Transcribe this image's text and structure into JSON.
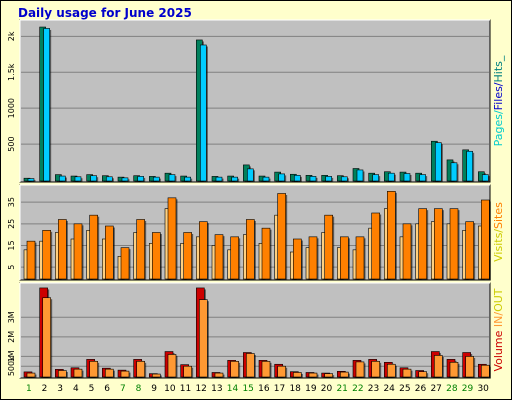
{
  "title": "Daily usage for June 2025",
  "colors": {
    "background": "#ffffcc",
    "panel": "#c0c0c0",
    "pages": "#00805c",
    "files": "#00ccff",
    "visits": "#ff8000",
    "volume_in": "#cc0000",
    "volume_out": "#ff9933",
    "label_pages": "#00cccc",
    "label_files": "#0000cc",
    "label_hits": "#008080",
    "label_visits": "#cccc00",
    "label_sites": "#ff8000",
    "label_volume": "#cc0000",
    "label_in": "#ff9933",
    "label_out": "#cccc00",
    "weekend_day": "#008000",
    "weekday_day": "#000000"
  },
  "chart_data": [
    {
      "type": "bar",
      "panel": "hits",
      "title": "Daily usage for June 2025",
      "categories": [
        "1",
        "2",
        "3",
        "4",
        "5",
        "6",
        "7",
        "8",
        "9",
        "10",
        "11",
        "12",
        "13",
        "14",
        "15",
        "16",
        "17",
        "18",
        "19",
        "20",
        "21",
        "22",
        "23",
        "24",
        "25",
        "26",
        "27",
        "28",
        "29",
        "30"
      ],
      "weekend_days": [
        "1",
        "7",
        "8",
        "14",
        "15",
        "21",
        "22",
        "28",
        "29"
      ],
      "series": [
        {
          "name": "Pages",
          "values": [
            25,
            2130,
            75,
            55,
            75,
            60,
            40,
            60,
            50,
            95,
            55,
            1950,
            50,
            55,
            210,
            55,
            110,
            80,
            65,
            65,
            60,
            160,
            95,
            115,
            110,
            95,
            540,
            280,
            420,
            115
          ]
        },
        {
          "name": "Files",
          "values": [
            20,
            2110,
            55,
            45,
            60,
            45,
            30,
            50,
            40,
            75,
            40,
            1880,
            40,
            40,
            155,
            40,
            85,
            65,
            50,
            50,
            45,
            140,
            75,
            95,
            90,
            75,
            520,
            240,
            400,
            75
          ]
        },
        {
          "name": "Hits",
          "values": [
            25,
            2130,
            75,
            55,
            75,
            60,
            40,
            60,
            50,
            95,
            55,
            1950,
            50,
            55,
            210,
            55,
            110,
            80,
            65,
            65,
            60,
            160,
            95,
            115,
            110,
            95,
            540,
            280,
            420,
            115
          ]
        }
      ],
      "y_ticks": [
        "500",
        "1000",
        "1.5k",
        "2k"
      ],
      "y_tick_values": [
        500,
        1000,
        1500,
        2000
      ],
      "ylim": [
        0,
        2200
      ],
      "legend": [
        "Pages",
        "Files",
        "Hits"
      ],
      "legend_separator": "/",
      "legend_suffix": "_"
    },
    {
      "type": "bar",
      "panel": "visits",
      "series": [
        {
          "name": "Sites",
          "values": [
            13,
            17,
            21,
            18,
            22,
            18,
            10,
            21,
            16,
            32,
            16,
            19,
            15,
            13,
            20,
            16,
            29,
            12,
            14,
            21,
            14,
            13,
            23,
            32,
            19,
            25,
            26,
            25,
            22,
            24
          ]
        },
        {
          "name": "Visits",
          "values": [
            17,
            22,
            27,
            25,
            29,
            24,
            14,
            27,
            21,
            37,
            21,
            26,
            20,
            19,
            27,
            23,
            39,
            18,
            19,
            29,
            19,
            19,
            30,
            40,
            25,
            32,
            32,
            32,
            26,
            36
          ]
        }
      ],
      "y_ticks": [
        "5",
        "15",
        "25",
        "35"
      ],
      "y_tick_values": [
        5,
        15,
        25,
        35
      ],
      "ylim": [
        0,
        42
      ],
      "legend": [
        "Visits",
        "Sites"
      ],
      "legend_separator": "/"
    },
    {
      "type": "bar",
      "panel": "volume",
      "series": [
        {
          "name": "IN",
          "values": [
            0.21,
            4.5,
            0.34,
            0.42,
            0.85,
            0.4,
            0.3,
            0.85,
            0.12,
            1.25,
            0.58,
            4.5,
            0.18,
            0.8,
            1.2,
            0.8,
            0.6,
            0.22,
            0.18,
            0.15,
            0.24,
            0.8,
            0.85,
            0.7,
            0.42,
            0.28,
            1.25,
            0.85,
            1.2,
            0.6
          ]
        },
        {
          "name": "OUT",
          "values": [
            0.15,
            4.0,
            0.28,
            0.35,
            0.75,
            0.35,
            0.25,
            0.75,
            0.1,
            1.1,
            0.5,
            3.9,
            0.15,
            0.75,
            1.15,
            0.75,
            0.5,
            0.18,
            0.15,
            0.12,
            0.2,
            0.72,
            0.75,
            0.6,
            0.35,
            0.22,
            1.05,
            0.7,
            1.0,
            0.55
          ]
        }
      ],
      "y_ticks": [
        "500k",
        "1M",
        "2M",
        "3M"
      ],
      "y_tick_values": [
        0.5,
        1,
        2,
        3
      ],
      "ylim": [
        0,
        4.65
      ],
      "legend": [
        "Volume",
        "IN",
        "OUT"
      ],
      "legend_separator": "/"
    }
  ]
}
